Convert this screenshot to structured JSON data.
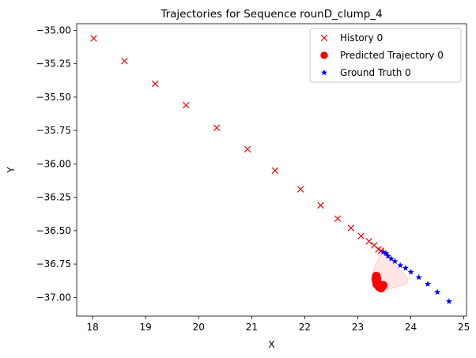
{
  "chart_data": {
    "type": "scatter",
    "title": "Trajectories for Sequence rounD_clump_4",
    "xlabel": "X",
    "ylabel": "Y",
    "xlim": [
      17.7,
      25.05
    ],
    "ylim": [
      -37.14,
      -34.95
    ],
    "xticks": [
      18,
      19,
      20,
      21,
      22,
      23,
      24,
      25
    ],
    "yticks": [
      -35.0,
      -35.25,
      -35.5,
      -35.75,
      -36.0,
      -36.25,
      -36.5,
      -36.75,
      -37.0
    ],
    "xtick_labels": [
      "18",
      "19",
      "20",
      "21",
      "22",
      "23",
      "24",
      "25"
    ],
    "ytick_labels": [
      "−35.00",
      "−35.25",
      "−35.50",
      "−35.75",
      "−36.00",
      "−36.25",
      "−36.50",
      "−36.75",
      "−37.00"
    ],
    "grid": false,
    "legend_position": "top-right",
    "series": [
      {
        "name": "History 0",
        "marker": "x",
        "color": "#ff0000",
        "points": [
          [
            18.02,
            -35.06
          ],
          [
            18.6,
            -35.23
          ],
          [
            19.18,
            -35.4
          ],
          [
            19.76,
            -35.56
          ],
          [
            20.34,
            -35.73
          ],
          [
            20.92,
            -35.89
          ],
          [
            21.44,
            -36.05
          ],
          [
            21.92,
            -36.19
          ],
          [
            22.3,
            -36.31
          ],
          [
            22.62,
            -36.41
          ],
          [
            22.87,
            -36.48
          ],
          [
            23.06,
            -36.54
          ],
          [
            23.21,
            -36.58
          ],
          [
            23.31,
            -36.61
          ],
          [
            23.39,
            -36.64
          ],
          [
            23.44,
            -36.65
          ]
        ]
      },
      {
        "name": "Predicted Trajectory 0",
        "marker": "circle",
        "color": "#ff0000",
        "points": [
          [
            23.35,
            -36.84
          ],
          [
            23.36,
            -36.86
          ],
          [
            23.35,
            -36.88
          ],
          [
            23.36,
            -36.9
          ],
          [
            23.37,
            -36.89
          ],
          [
            23.4,
            -36.92
          ],
          [
            23.44,
            -36.93
          ],
          [
            23.48,
            -36.91
          ],
          [
            23.34,
            -36.86
          ]
        ]
      },
      {
        "name": "Ground Truth 0",
        "marker": "star",
        "color": "#0000ff",
        "points": [
          [
            23.48,
            -36.66
          ],
          [
            23.53,
            -36.67
          ],
          [
            23.57,
            -36.69
          ],
          [
            23.63,
            -36.71
          ],
          [
            23.7,
            -36.73
          ],
          [
            23.8,
            -36.76
          ],
          [
            23.9,
            -36.78
          ],
          [
            24.0,
            -36.81
          ],
          [
            24.15,
            -36.85
          ],
          [
            24.32,
            -36.9
          ],
          [
            24.5,
            -36.96
          ],
          [
            24.72,
            -37.03
          ]
        ]
      }
    ],
    "uncertainty_region": {
      "color": "#ff0000",
      "polygon": [
        [
          23.45,
          -36.66
        ],
        [
          23.62,
          -36.72
        ],
        [
          23.95,
          -36.86
        ],
        [
          23.93,
          -36.9
        ],
        [
          23.55,
          -36.94
        ],
        [
          23.28,
          -36.93
        ],
        [
          23.27,
          -36.85
        ],
        [
          23.33,
          -36.76
        ]
      ]
    }
  }
}
